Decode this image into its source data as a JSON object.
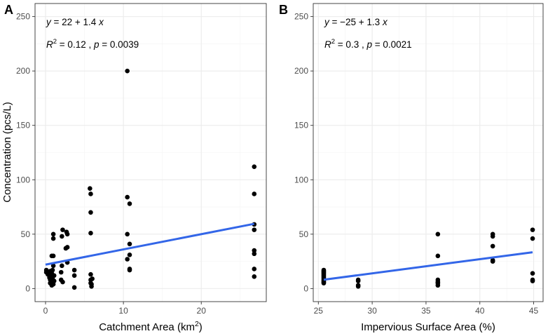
{
  "chart_data": [
    {
      "type": "scatter",
      "panel_label": "A",
      "xlabel": "Catchment Area (km",
      "xlabel_sup": "2",
      "xlabel_tail": ")",
      "ylabel": "Concentration (pcs/L)",
      "xlim": [
        -1.35,
        28.35
      ],
      "ylim": [
        -12,
        262
      ],
      "x_ticks": [
        0,
        10,
        20
      ],
      "y_ticks": [
        0,
        50,
        100,
        150,
        200,
        250
      ],
      "grid": true,
      "equation": {
        "y_italic": "y",
        "text": " = 22 + 1.4 ",
        "x_italic": "x"
      },
      "stats": {
        "r_italic": "R",
        "r_sup": "2",
        "r_text": " = 0.12 , ",
        "p_italic": "p",
        "p_text": " = 0.0039"
      },
      "fit_line": {
        "intercept": 22,
        "slope": 1.4,
        "x_range": [
          0,
          26.8
        ],
        "color": "#3366e8"
      },
      "points": [
        [
          0.1,
          17
        ],
        [
          0.1,
          15
        ],
        [
          0.3,
          13
        ],
        [
          0.5,
          10
        ],
        [
          0.6,
          16
        ],
        [
          0.6,
          8
        ],
        [
          0.6,
          5
        ],
        [
          0.7,
          12
        ],
        [
          0.7,
          6
        ],
        [
          0.8,
          3
        ],
        [
          0.8,
          14
        ],
        [
          0.8,
          30
        ],
        [
          0.9,
          17
        ],
        [
          0.9,
          9
        ],
        [
          1.0,
          4
        ],
        [
          1.0,
          30
        ],
        [
          1.0,
          21
        ],
        [
          1.0,
          46
        ],
        [
          1.0,
          50
        ],
        [
          1.1,
          12
        ],
        [
          1.1,
          7
        ],
        [
          2.0,
          15
        ],
        [
          2.0,
          8
        ],
        [
          2.1,
          21
        ],
        [
          2.1,
          48
        ],
        [
          2.2,
          54
        ],
        [
          2.2,
          6
        ],
        [
          2.6,
          37
        ],
        [
          2.7,
          52
        ],
        [
          2.8,
          50
        ],
        [
          2.8,
          24
        ],
        [
          2.8,
          38
        ],
        [
          3.7,
          17
        ],
        [
          3.7,
          12
        ],
        [
          3.7,
          1
        ],
        [
          5.7,
          92
        ],
        [
          5.8,
          87
        ],
        [
          5.8,
          70
        ],
        [
          5.8,
          51
        ],
        [
          5.8,
          13
        ],
        [
          5.8,
          8
        ],
        [
          5.8,
          5
        ],
        [
          5.9,
          4
        ],
        [
          5.9,
          2
        ],
        [
          6.0,
          9
        ],
        [
          10.5,
          200
        ],
        [
          10.5,
          84
        ],
        [
          10.5,
          50
        ],
        [
          10.5,
          27
        ],
        [
          10.8,
          78
        ],
        [
          10.8,
          41
        ],
        [
          10.8,
          31
        ],
        [
          10.8,
          18
        ],
        [
          10.8,
          17
        ],
        [
          26.8,
          112
        ],
        [
          26.8,
          87
        ],
        [
          26.8,
          59
        ],
        [
          26.8,
          54
        ],
        [
          26.8,
          35
        ],
        [
          26.8,
          32
        ],
        [
          26.8,
          18
        ],
        [
          26.8,
          11
        ]
      ]
    },
    {
      "type": "scatter",
      "panel_label": "B",
      "xlabel": "Impervious Surface Area (%)",
      "ylabel": "",
      "xlim": [
        24.525,
        45.875
      ],
      "ylim": [
        -12,
        262
      ],
      "x_ticks": [
        25,
        30,
        35,
        40,
        45
      ],
      "y_ticks": [
        0,
        50,
        100,
        150,
        200,
        250
      ],
      "grid": true,
      "equation": {
        "y_italic": "y",
        "text": " = −25 + 1.3 ",
        "x_italic": "x"
      },
      "stats": {
        "r_italic": "R",
        "r_sup": "2",
        "r_text": " = 0.3 , ",
        "p_italic": "p",
        "p_text": " = 0.0021"
      },
      "fit_line": {
        "intercept": -25,
        "slope": 1.3,
        "x_range": [
          25.5,
          44.9
        ],
        "color": "#3366e8"
      },
      "points": [
        [
          25.5,
          17
        ],
        [
          25.5,
          16
        ],
        [
          25.5,
          15
        ],
        [
          25.5,
          14
        ],
        [
          25.5,
          13
        ],
        [
          25.5,
          12
        ],
        [
          25.5,
          11
        ],
        [
          25.5,
          10
        ],
        [
          25.5,
          9
        ],
        [
          25.5,
          8
        ],
        [
          25.5,
          7
        ],
        [
          25.5,
          6
        ],
        [
          25.5,
          5
        ],
        [
          28.7,
          8
        ],
        [
          28.7,
          7
        ],
        [
          28.7,
          3
        ],
        [
          28.7,
          2
        ],
        [
          36.1,
          50
        ],
        [
          36.1,
          30
        ],
        [
          36.1,
          8
        ],
        [
          36.1,
          6
        ],
        [
          36.1,
          5
        ],
        [
          36.1,
          3
        ],
        [
          41.2,
          50
        ],
        [
          41.2,
          48
        ],
        [
          41.2,
          39
        ],
        [
          41.2,
          26
        ],
        [
          41.2,
          25
        ],
        [
          44.9,
          54
        ],
        [
          44.9,
          46
        ],
        [
          44.9,
          14
        ],
        [
          44.9,
          8
        ],
        [
          44.9,
          7
        ]
      ]
    }
  ]
}
